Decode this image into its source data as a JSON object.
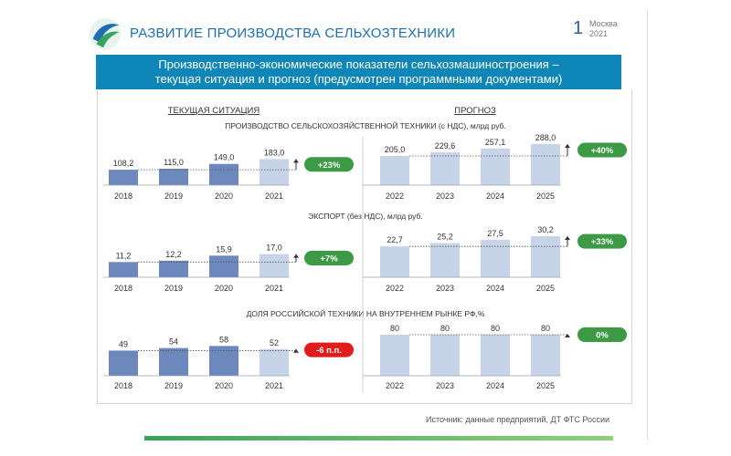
{
  "header": {
    "title": "РАЗВИТИЕ ПРОИЗВОДСТВА СЕЛЬХОЗТЕХНИКИ",
    "page_number": "1",
    "city": "Москва",
    "year": "2021"
  },
  "banner": {
    "line1": "Производственно-экономические показатели сельхозмашиностроения –",
    "line2": "текущая ситуация и прогноз (предусмотрен программными документами)"
  },
  "source": "Источник: данные предприятий, ДТ ФТС России",
  "colors": {
    "current_bar": "#6c88bd",
    "projected_bar": "#c6d3e8",
    "forecast_bar": "#c6d3e8",
    "badge_positive": "#3b9a43",
    "badge_negative": "#e21b1b",
    "banner": "#0e86b8",
    "title": "#1f6fb0"
  },
  "chart_data": {
    "type": "bar",
    "left_header": "ТЕКУЩАЯ СИТУАЦИЯ",
    "right_header": "ПРОГНОЗ",
    "current_years": [
      "2018",
      "2019",
      "2020",
      "2021"
    ],
    "forecast_years": [
      "2022",
      "2023",
      "2024",
      "2025"
    ],
    "rows": [
      {
        "title": "ПРОИЗВОДСТВО СЕЛЬСКОХОЗЯЙСТВЕННОЙ ТЕХНИКИ (с НДС), млрд руб.",
        "current_labels": [
          "108,2",
          "115,0",
          "149,0",
          "183,0"
        ],
        "current_values": [
          108.2,
          115.0,
          149.0,
          183.0
        ],
        "current_badge": "+23%",
        "forecast_labels": [
          "205,0",
          "229,6",
          "257,1",
          "288,0"
        ],
        "forecast_values": [
          205.0,
          229.6,
          257.1,
          288.0
        ],
        "forecast_badge": "+40%"
      },
      {
        "title": "ЭКСПОРТ (без НДС), млрд руб.",
        "current_labels": [
          "11,2",
          "12,2",
          "15,9",
          "17,0"
        ],
        "current_values": [
          11.2,
          12.2,
          15.9,
          17.0
        ],
        "current_badge": "+7%",
        "forecast_labels": [
          "22,7",
          "25,2",
          "27,5",
          "30,2"
        ],
        "forecast_values": [
          22.7,
          25.2,
          27.5,
          30.2
        ],
        "forecast_badge": "+33%"
      },
      {
        "title": "ДОЛЯ РОССИЙСКОЙ ТЕХНИКИ НА ВНУТРЕННЕМ РЫНКЕ РФ,%",
        "current_labels": [
          "49",
          "54",
          "58",
          "52"
        ],
        "current_values": [
          49,
          54,
          58,
          52
        ],
        "current_badge": "-6 п.п.",
        "forecast_labels": [
          "80",
          "80",
          "80",
          "80"
        ],
        "forecast_values": [
          80,
          80,
          80,
          80
        ],
        "forecast_badge": "0%"
      }
    ]
  }
}
